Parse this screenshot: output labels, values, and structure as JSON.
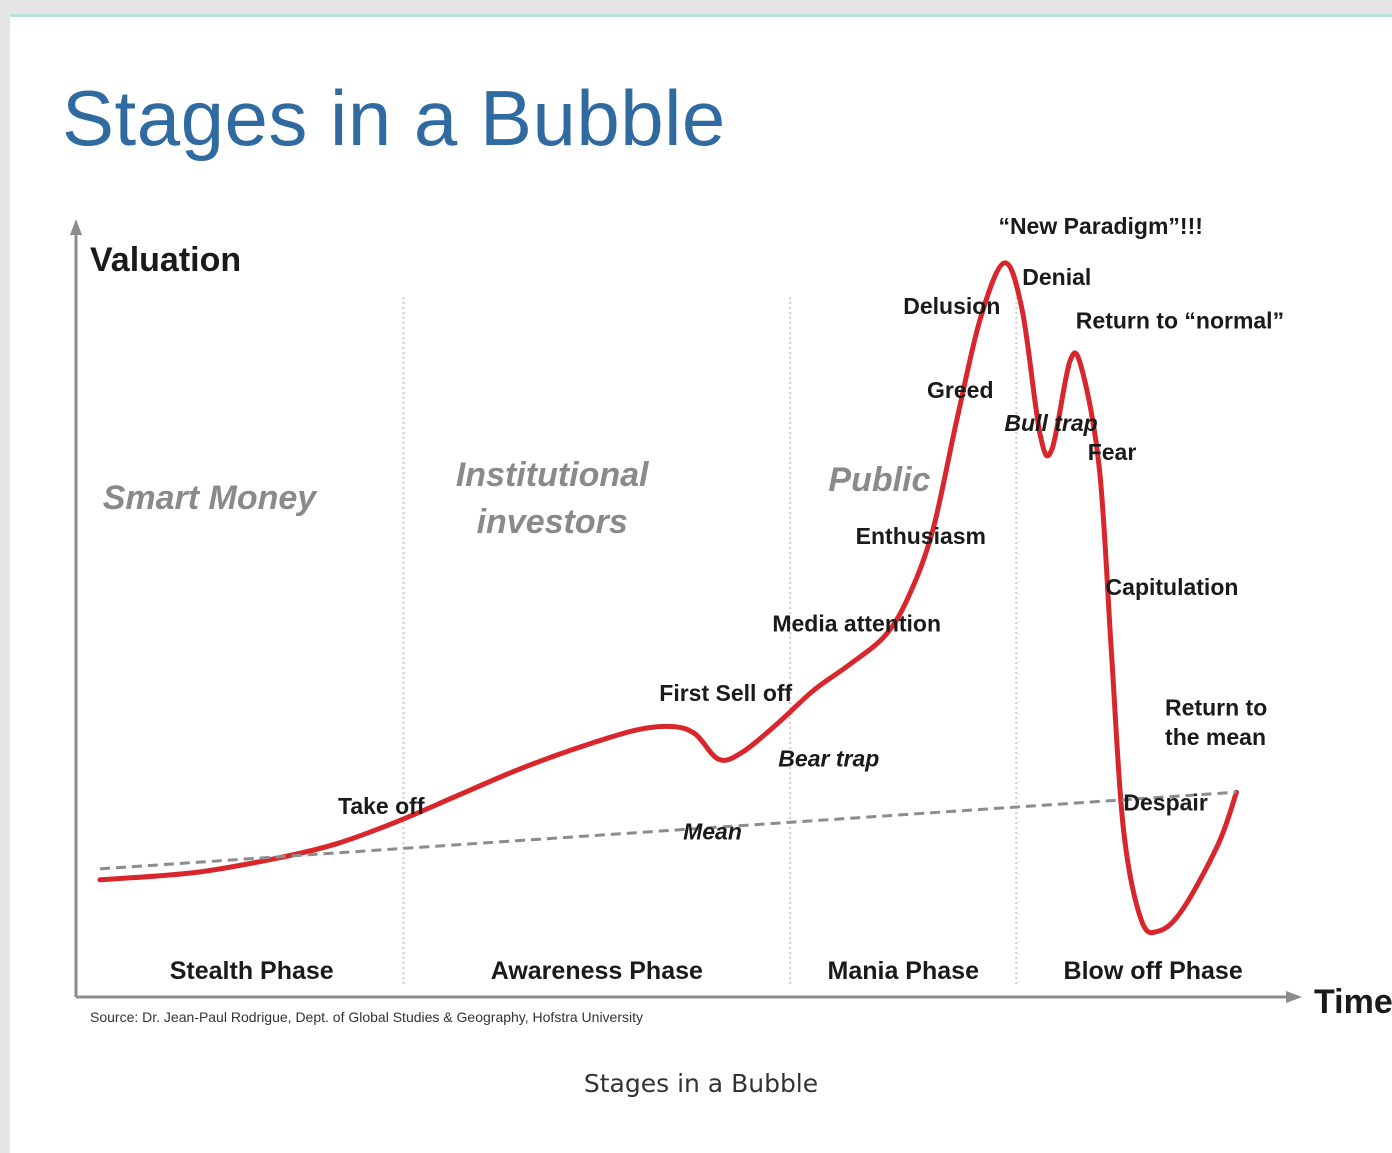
{
  "slide": {
    "title": "Stages in a Bubble",
    "caption": "Stages in a Bubble"
  },
  "colors": {
    "title": "#2f6aa0",
    "curve": "#d9262c",
    "mean_line": "#8c8c8c",
    "axis": "#8c8c8c",
    "group_text": "#8a8a8a"
  },
  "chart_data": {
    "type": "line",
    "title": "",
    "ylabel": "Valuation",
    "xlabel": "Time",
    "source": "Source: Dr. Jean-Paul Rodrigue, Dept. of Global Studies & Geography, Hofstra University",
    "xlim": [
      0,
      100
    ],
    "ylim": [
      0,
      100
    ],
    "grid": false,
    "phases": [
      {
        "name": "Stealth Phase",
        "start": 0,
        "end": 25.5
      },
      {
        "name": "Awareness Phase",
        "start": 25.5,
        "end": 58
      },
      {
        "name": "Mania Phase",
        "start": 58,
        "end": 77
      },
      {
        "name": "Blow off Phase",
        "start": 77,
        "end": 100
      }
    ],
    "investor_groups": [
      "Smart Money",
      "Institutional investors",
      "Public"
    ],
    "series": [
      {
        "values": [
          {
            "x": 0,
            "y": 14
          },
          {
            "x": 8,
            "y": 15
          },
          {
            "x": 15,
            "y": 17
          },
          {
            "x": 20,
            "y": 19
          },
          {
            "x": 25,
            "y": 22
          },
          {
            "x": 30,
            "y": 25.5
          },
          {
            "x": 35,
            "y": 29
          },
          {
            "x": 40,
            "y": 32
          },
          {
            "x": 45,
            "y": 34.5
          },
          {
            "x": 48,
            "y": 35
          },
          {
            "x": 50,
            "y": 34
          },
          {
            "x": 52,
            "y": 30.5
          },
          {
            "x": 54,
            "y": 31.5
          },
          {
            "x": 57,
            "y": 35.5
          },
          {
            "x": 60,
            "y": 40
          },
          {
            "x": 63,
            "y": 43.5
          },
          {
            "x": 66,
            "y": 47.5
          },
          {
            "x": 68,
            "y": 53
          },
          {
            "x": 70,
            "y": 62
          },
          {
            "x": 72,
            "y": 77
          },
          {
            "x": 74,
            "y": 91
          },
          {
            "x": 76,
            "y": 98.5
          },
          {
            "x": 77.5,
            "y": 92
          },
          {
            "x": 79,
            "y": 75
          },
          {
            "x": 80,
            "y": 73
          },
          {
            "x": 81.5,
            "y": 85
          },
          {
            "x": 82.5,
            "y": 84
          },
          {
            "x": 84,
            "y": 70
          },
          {
            "x": 85,
            "y": 45
          },
          {
            "x": 86,
            "y": 21
          },
          {
            "x": 87.5,
            "y": 8.5
          },
          {
            "x": 89,
            "y": 7
          },
          {
            "x": 91,
            "y": 10
          },
          {
            "x": 94,
            "y": 19
          },
          {
            "x": 95.5,
            "y": 26
          }
        ]
      },
      {
        "values": [
          {
            "x": 0,
            "y": 15.5
          },
          {
            "x": 95.5,
            "y": 26
          }
        ],
        "dashed": true
      }
    ],
    "annotations": [
      {
        "text": "Take off",
        "x": 20,
        "y": 23,
        "italic": false
      },
      {
        "text": "First Sell off",
        "x": 47,
        "y": 38.5,
        "italic": false
      },
      {
        "text": "Bear trap",
        "x": 57,
        "y": 29.5,
        "italic": true
      },
      {
        "text": "Mean",
        "x": 49,
        "y": 19.5,
        "italic": true
      },
      {
        "text": "Media attention",
        "x": 56.5,
        "y": 48,
        "italic": false
      },
      {
        "text": "Enthusiasm",
        "x": 63.5,
        "y": 60,
        "italic": false
      },
      {
        "text": "Greed",
        "x": 69.5,
        "y": 80,
        "italic": false
      },
      {
        "text": "Delusion",
        "x": 67.5,
        "y": 91.5,
        "italic": false
      },
      {
        "text": "“New Paradigm”!!!",
        "x": 75.5,
        "y": 102.5,
        "italic": false
      },
      {
        "text": "Denial",
        "x": 77.5,
        "y": 95.5,
        "italic": false
      },
      {
        "text": "Return to “normal”",
        "x": 82,
        "y": 89.5,
        "italic": false
      },
      {
        "text": "Bull trap",
        "x": 76,
        "y": 75.5,
        "italic": true
      },
      {
        "text": "Fear",
        "x": 83,
        "y": 71.5,
        "italic": false
      },
      {
        "text": "Capitulation",
        "x": 84.5,
        "y": 53,
        "italic": false
      },
      {
        "text": "Return to",
        "x": 89.5,
        "y": 36.5,
        "italic": false
      },
      {
        "text": "the mean",
        "x": 89.5,
        "y": 32.5,
        "italic": false
      },
      {
        "text": "Despair",
        "x": 86,
        "y": 23.5,
        "italic": false
      }
    ]
  }
}
